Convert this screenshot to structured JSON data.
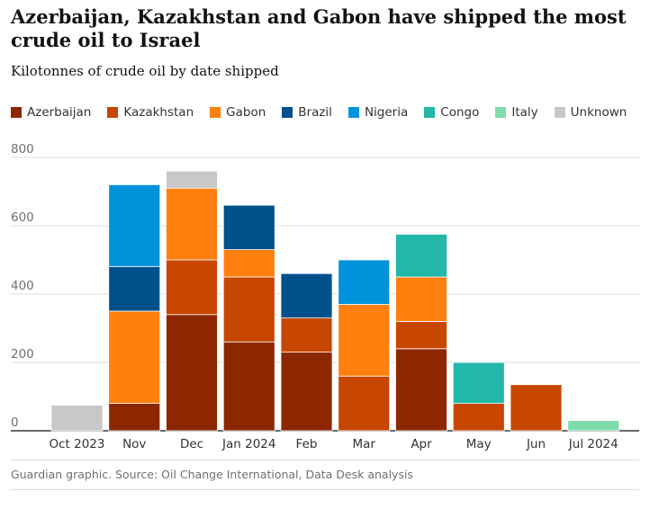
{
  "chart_data": {
    "type": "bar",
    "stacked": true,
    "title": "Azerbaijan, Kazakhstan and Gabon have shipped the most crude oil to Israel",
    "subtitle": "Kilotonnes of crude oil by date shipped",
    "xlabel": "",
    "ylabel": "",
    "ylim": [
      0,
      800
    ],
    "yticks": [
      0,
      200,
      400,
      600,
      800
    ],
    "grid": true,
    "legend_position": "top",
    "categories": [
      "Oct 2023",
      "Nov",
      "Dec",
      "Jan 2024",
      "Feb",
      "Mar",
      "Apr",
      "May",
      "Jun",
      "Jul 2024"
    ],
    "series": [
      {
        "name": "Azerbaijan",
        "color": "#8c2700",
        "values": [
          0,
          80,
          340,
          260,
          230,
          0,
          240,
          0,
          0,
          0
        ]
      },
      {
        "name": "Kazakhstan",
        "color": "#c74600",
        "values": [
          0,
          0,
          160,
          190,
          100,
          160,
          80,
          80,
          135,
          0
        ]
      },
      {
        "name": "Gabon",
        "color": "#ff7f0f",
        "values": [
          0,
          270,
          210,
          80,
          0,
          210,
          130,
          0,
          0,
          0
        ]
      },
      {
        "name": "Brazil",
        "color": "#00508c",
        "values": [
          0,
          130,
          0,
          130,
          130,
          0,
          0,
          0,
          0,
          0
        ]
      },
      {
        "name": "Nigeria",
        "color": "#0093db",
        "values": [
          0,
          240,
          0,
          0,
          0,
          130,
          0,
          0,
          0,
          0
        ]
      },
      {
        "name": "Congo",
        "color": "#22b7a9",
        "values": [
          0,
          0,
          0,
          0,
          0,
          0,
          125,
          120,
          0,
          0
        ]
      },
      {
        "name": "Italy",
        "color": "#7fdcaa",
        "values": [
          0,
          0,
          0,
          0,
          0,
          0,
          0,
          0,
          0,
          30
        ]
      },
      {
        "name": "Unknown",
        "color": "#c8c8c8",
        "values": [
          75,
          0,
          50,
          0,
          0,
          0,
          0,
          0,
          0,
          0
        ]
      }
    ]
  },
  "footer": {
    "source": "Guardian graphic. Source: Oil Change International, Data Desk analysis"
  }
}
